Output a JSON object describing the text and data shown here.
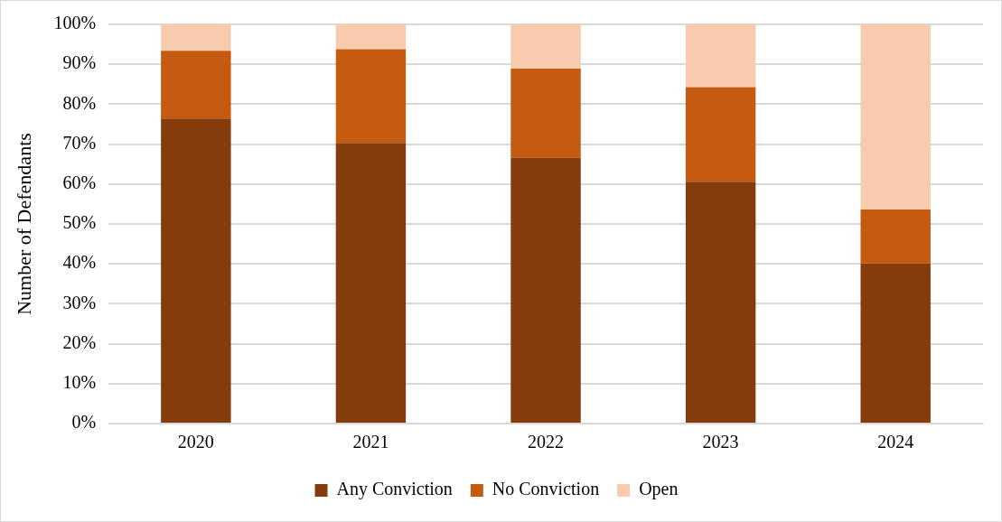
{
  "chart_data": {
    "type": "bar",
    "stacked": true,
    "ylabel": "Number of Defendants",
    "categories": [
      "2020",
      "2021",
      "2022",
      "2023",
      "2024"
    ],
    "series": [
      {
        "name": "Any Conviction",
        "color": "#843c0c",
        "values": [
          76.4,
          70.3,
          66.6,
          60.6,
          40.1
        ]
      },
      {
        "name": "No Conviction",
        "color": "#c55a11",
        "values": [
          17.0,
          23.5,
          22.3,
          23.7,
          13.5
        ]
      },
      {
        "name": "Open",
        "color": "#f8cbad",
        "values": [
          6.6,
          6.2,
          11.1,
          15.7,
          46.4
        ]
      }
    ],
    "ylim": [
      0,
      100
    ],
    "yticks": [
      {
        "value": 0,
        "label": "0%"
      },
      {
        "value": 10,
        "label": "10%"
      },
      {
        "value": 20,
        "label": "20%"
      },
      {
        "value": 30,
        "label": "30%"
      },
      {
        "value": 40,
        "label": "40%"
      },
      {
        "value": 50,
        "label": "50%"
      },
      {
        "value": 60,
        "label": "60%"
      },
      {
        "value": 70,
        "label": "70%"
      },
      {
        "value": 80,
        "label": "80%"
      },
      {
        "value": 90,
        "label": "90%"
      },
      {
        "value": 100,
        "label": "100%"
      }
    ],
    "grid": "y",
    "legend": "bottom"
  }
}
